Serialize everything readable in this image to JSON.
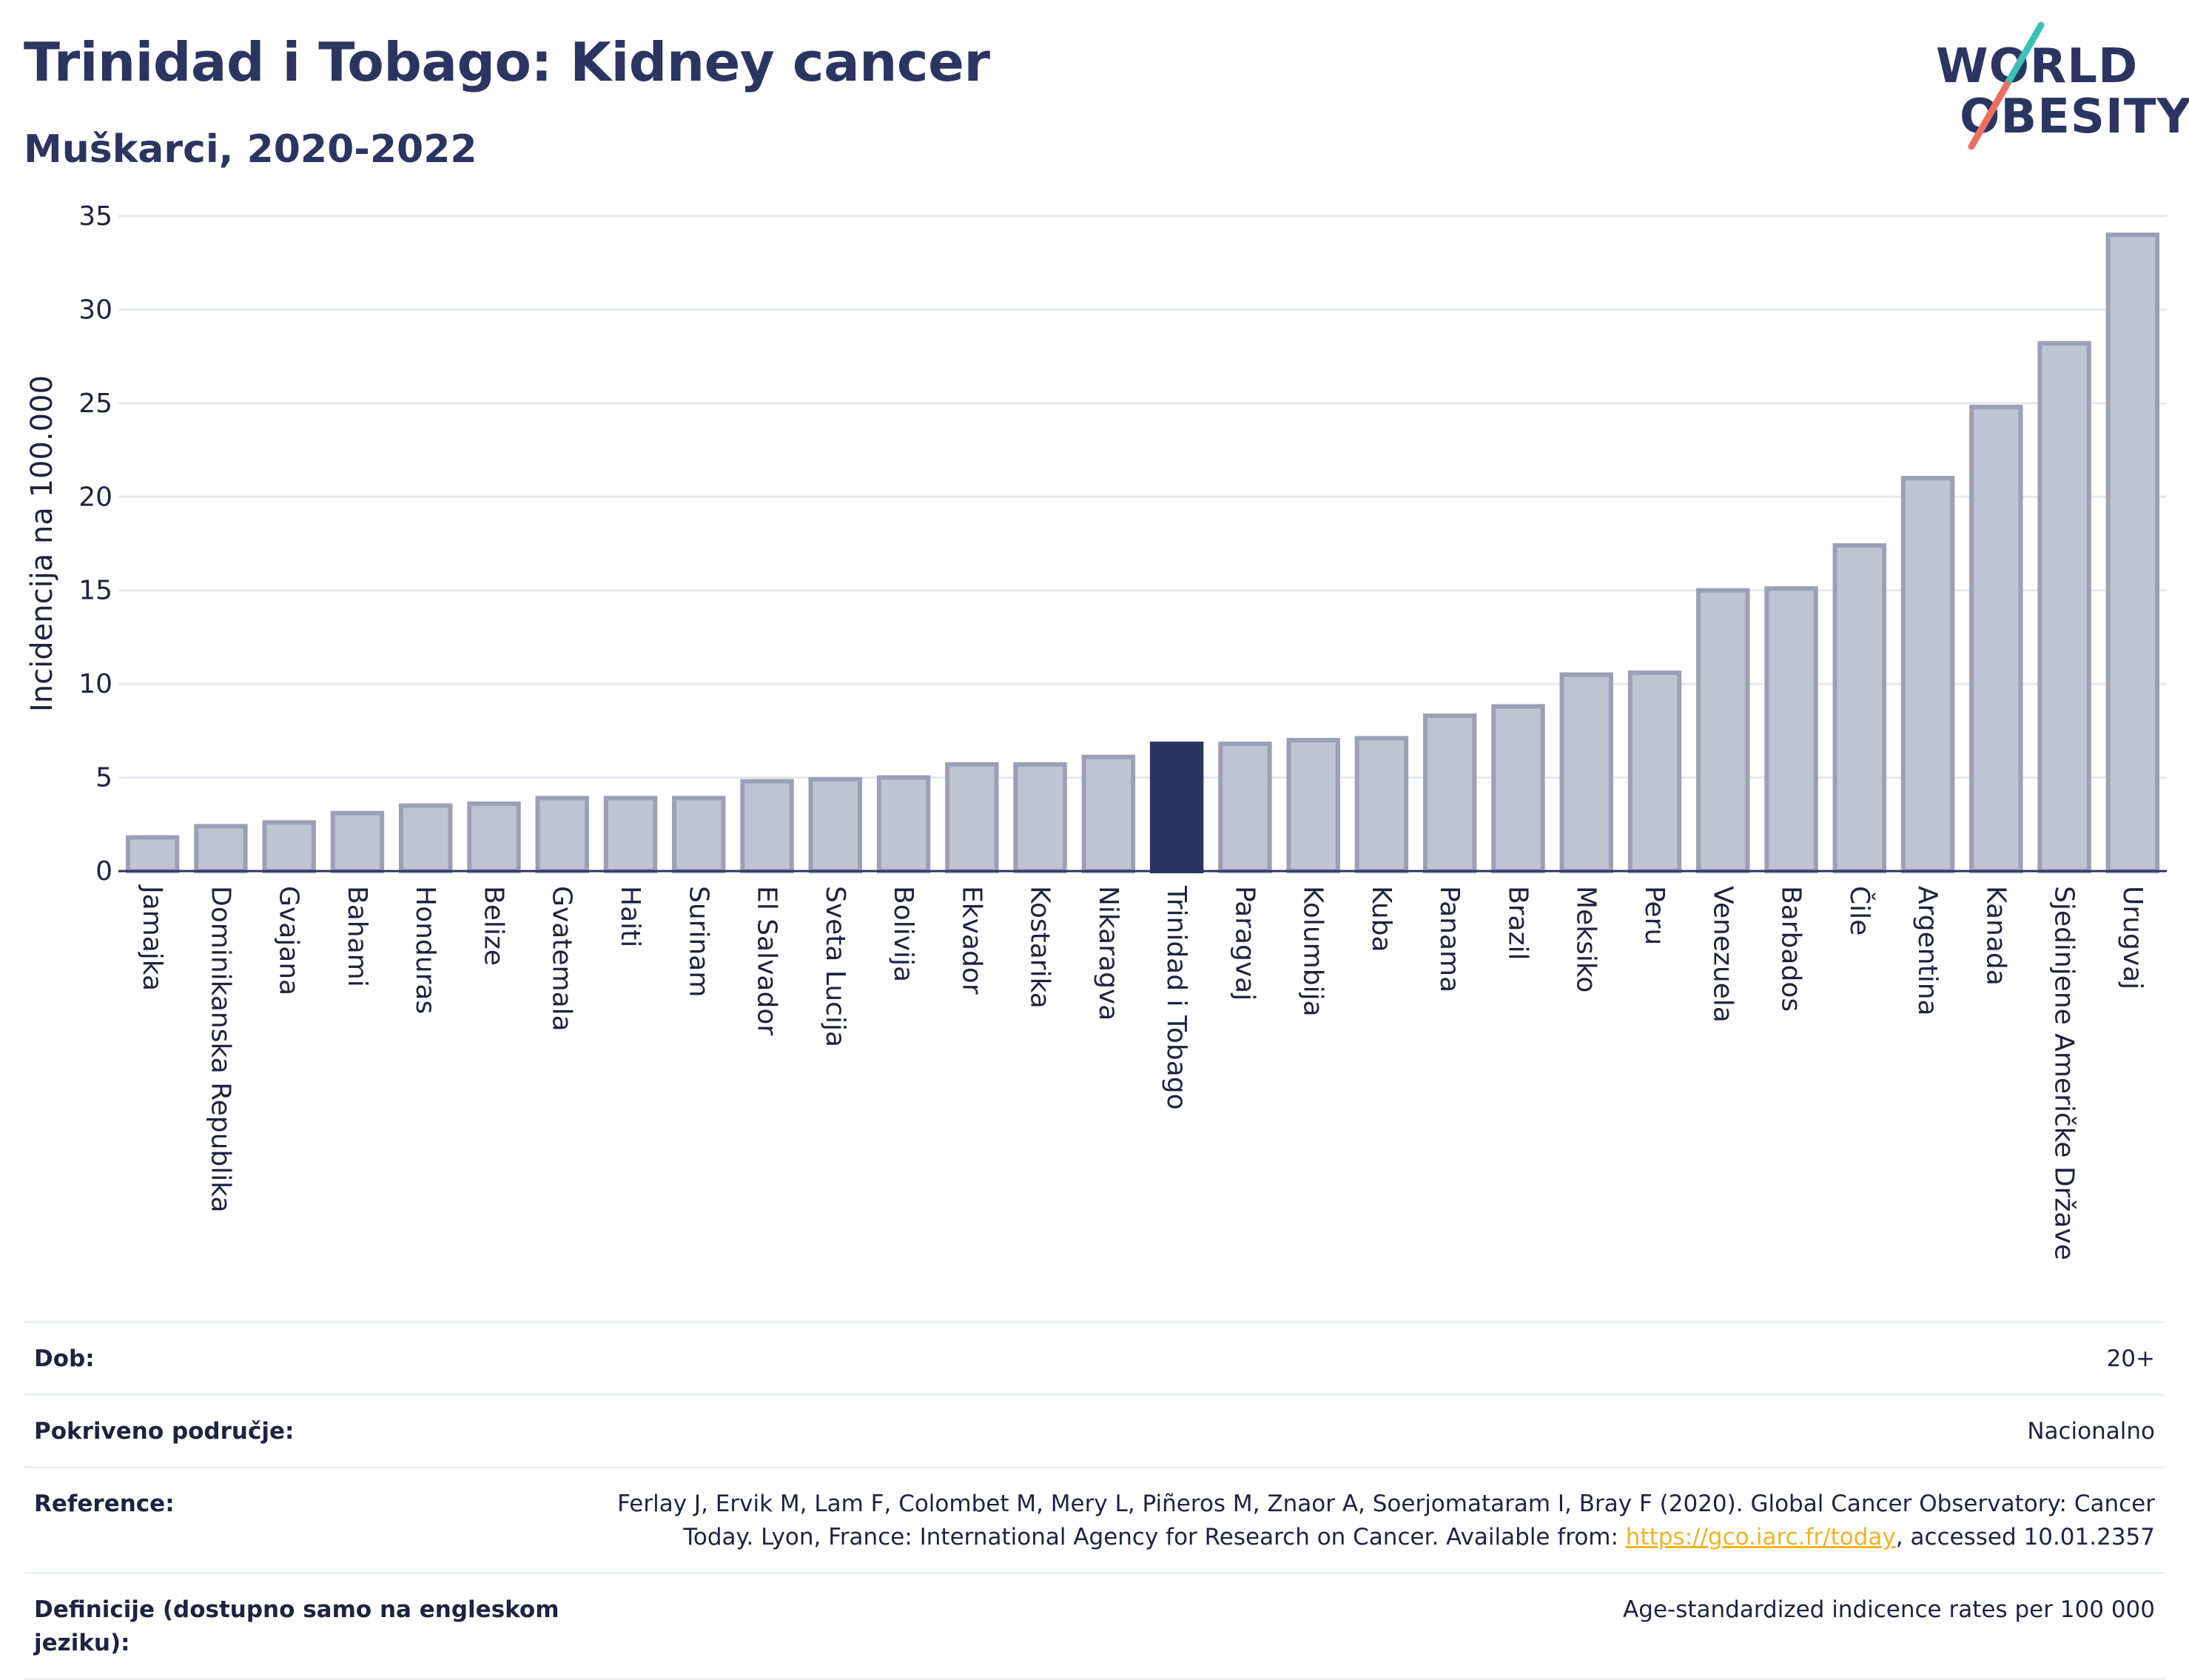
{
  "header": {
    "title": "Trinidad i Tobago: Kidney cancer",
    "subtitle": "Muškarci, 2020-2022"
  },
  "logo": {
    "line1": "WORLD",
    "line2": "OBESITY",
    "colors": {
      "text": "#2b3561",
      "slash_top": "#3cc1b7",
      "slash_bottom": "#ec6f5f"
    }
  },
  "colors": {
    "bar": "#c0c4d2",
    "bar_stroke": "#9aa0b6",
    "highlight": "#2b3561",
    "grid": "#e6e8ee",
    "axis_text": "#1e2340"
  },
  "chart_data": {
    "type": "bar",
    "title": "Trinidad i Tobago: Kidney cancer",
    "subtitle": "Muškarci, 2020-2022",
    "ylabel": "Incidencija na 100.000",
    "xlabel": "",
    "ylim": [
      0,
      35
    ],
    "yticks": [
      0,
      5,
      10,
      15,
      20,
      25,
      30,
      35
    ],
    "grid": true,
    "highlight": "Trinidad i Tobago",
    "categories": [
      "Jamajka",
      "Dominikanska Republika",
      "Gvajana",
      "Bahami",
      "Honduras",
      "Belize",
      "Gvatemala",
      "Haiti",
      "Surinam",
      "El Salvador",
      "Sveta Lucija",
      "Bolivija",
      "Ekvador",
      "Kostarika",
      "Nikaragva",
      "Trinidad i Tobago",
      "Paragvaj",
      "Kolumbija",
      "Kuba",
      "Panama",
      "Brazil",
      "Meksiko",
      "Peru",
      "Venezuela",
      "Barbados",
      "Čile",
      "Argentina",
      "Kanada",
      "Sjedinjene Američke Države",
      "Urugvaj"
    ],
    "values": [
      1.8,
      2.4,
      2.6,
      3.1,
      3.5,
      3.6,
      3.9,
      3.9,
      3.9,
      4.8,
      4.9,
      5.0,
      5.7,
      5.7,
      6.1,
      6.8,
      6.8,
      7.0,
      7.1,
      8.3,
      8.8,
      10.5,
      10.6,
      15.0,
      15.1,
      17.4,
      21.0,
      24.8,
      28.2,
      34.0
    ]
  },
  "info": {
    "rows": [
      {
        "label": "Dob:",
        "value": "20+"
      },
      {
        "label": "Pokriveno područje:",
        "value": "Nacionalno"
      },
      {
        "label": "Reference:",
        "value_line1": "Ferlay J, Ervik M, Lam F, Colombet M, Mery L, Piñeros M, Znaor A, Soerjomataram I, Bray F (2020). Global Cancer Observatory: Cancer",
        "value_line2_pre": "Today. Lyon, France: International Agency for Research on Cancer. Available from: ",
        "value_link": "https://gco.iarc.fr/today",
        "value_line2_post": ", accessed 10.01.2357"
      },
      {
        "label": "Definicije (dostupno samo na engleskom jeziku):",
        "value": "Age-standardized indicence rates per 100 000"
      }
    ]
  }
}
